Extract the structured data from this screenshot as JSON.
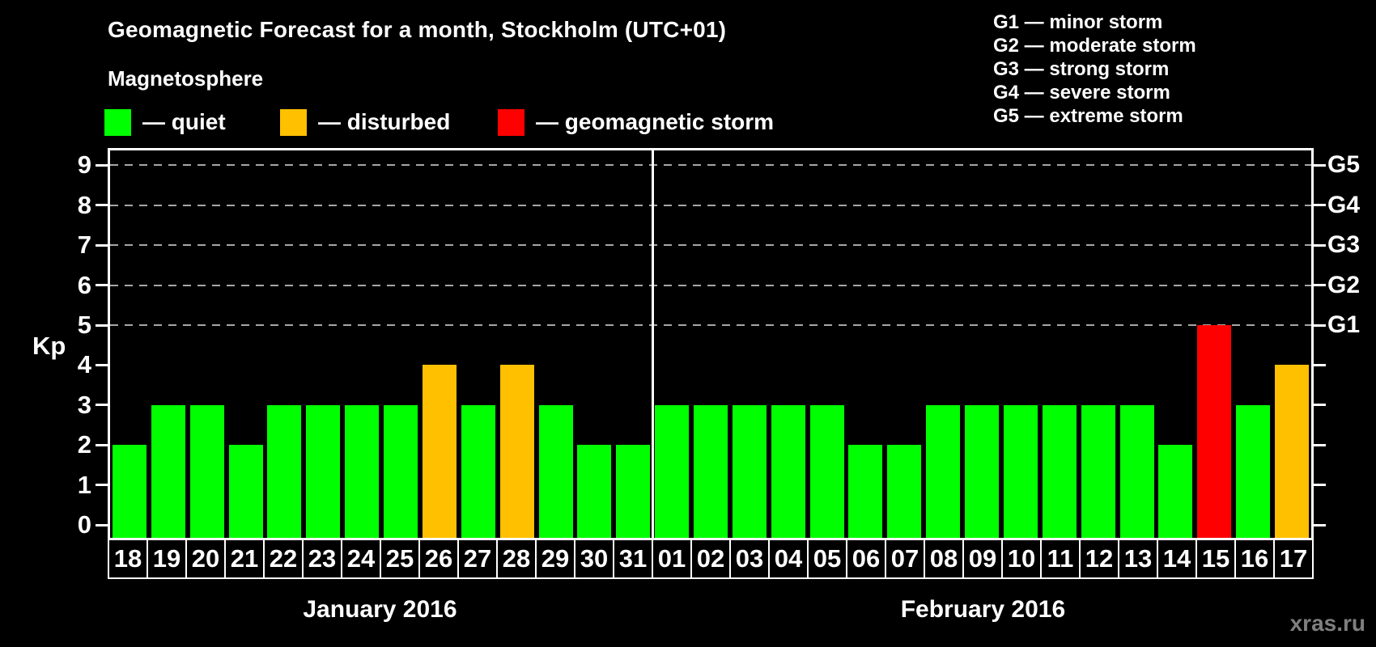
{
  "header": {
    "title": "Geomagnetic Forecast for a month, Stockholm (UTC+01)",
    "subtitle": "Magnetosphere"
  },
  "legend": {
    "items": [
      {
        "key": "quiet",
        "label": "— quiet",
        "color": "#00ff00"
      },
      {
        "key": "disturbed",
        "label": "— disturbed",
        "color": "#ffc000"
      },
      {
        "key": "storm",
        "label": "— geomagnetic storm",
        "color": "#ff0000"
      }
    ]
  },
  "storm_scale": {
    "lines": [
      "G1 — minor storm",
      "G2 — moderate storm",
      "G3 — strong storm",
      "G4 — severe storm",
      "G5 — extreme storm"
    ]
  },
  "footer": {
    "watermark": "xras.ru"
  },
  "chart_data": {
    "type": "bar",
    "title": "Geomagnetic Forecast for a month, Stockholm (UTC+01)",
    "xlabel": "",
    "ylabel": "Kp",
    "ylim": [
      0,
      9
    ],
    "yticks": [
      0,
      1,
      2,
      3,
      4,
      5,
      6,
      7,
      8,
      9
    ],
    "gridlines": [
      5,
      6,
      7,
      8,
      9
    ],
    "grid_on": true,
    "grid_color": "#a6a6a6",
    "axis_color": "#ffffff",
    "background_color": "#000000",
    "right_axis": [
      {
        "kp": 5,
        "label": "G1"
      },
      {
        "kp": 6,
        "label": "G2"
      },
      {
        "kp": 7,
        "label": "G3"
      },
      {
        "kp": 8,
        "label": "G4"
      },
      {
        "kp": 9,
        "label": "G5"
      }
    ],
    "months": [
      {
        "label": "January 2016",
        "days": 14
      },
      {
        "label": "February 2016",
        "days": 17
      }
    ],
    "categories": [
      "18",
      "19",
      "20",
      "21",
      "22",
      "23",
      "24",
      "25",
      "26",
      "27",
      "28",
      "29",
      "30",
      "31",
      "01",
      "02",
      "03",
      "04",
      "05",
      "06",
      "07",
      "08",
      "09",
      "10",
      "11",
      "12",
      "13",
      "14",
      "15",
      "16",
      "17"
    ],
    "values": [
      2,
      3,
      3,
      2,
      3,
      3,
      3,
      3,
      4,
      3,
      4,
      3,
      2,
      2,
      3,
      3,
      3,
      3,
      3,
      2,
      2,
      3,
      3,
      3,
      3,
      3,
      3,
      2,
      5,
      3,
      4
    ],
    "statuses": [
      "quiet",
      "quiet",
      "quiet",
      "quiet",
      "quiet",
      "quiet",
      "quiet",
      "quiet",
      "disturbed",
      "quiet",
      "disturbed",
      "quiet",
      "quiet",
      "quiet",
      "quiet",
      "quiet",
      "quiet",
      "quiet",
      "quiet",
      "quiet",
      "quiet",
      "quiet",
      "quiet",
      "quiet",
      "quiet",
      "quiet",
      "quiet",
      "quiet",
      "storm",
      "quiet",
      "disturbed"
    ],
    "status_colors": {
      "quiet": "#00ff00",
      "disturbed": "#ffc000",
      "storm": "#ff0000"
    }
  }
}
